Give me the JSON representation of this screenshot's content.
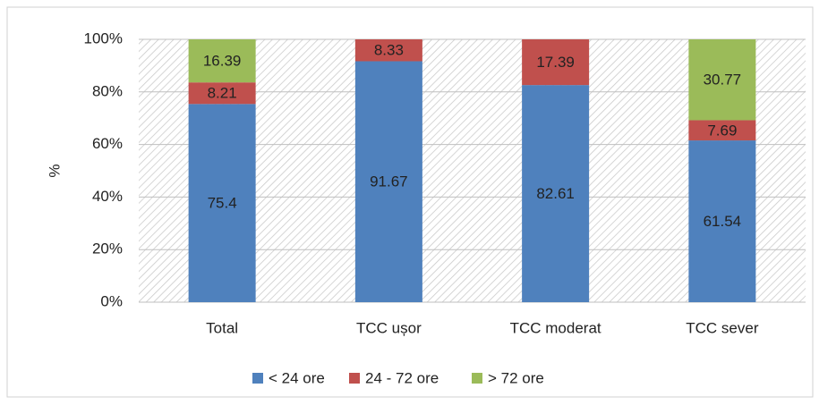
{
  "chart_data": {
    "type": "stacked_bar",
    "y_label": "%",
    "categories": [
      "Total",
      "TCC ușor",
      "TCC moderat",
      "TCC sever"
    ],
    "series": [
      {
        "name": "< 24 ore",
        "color": "#4f81bd",
        "values": [
          75.4,
          91.67,
          82.61,
          61.54
        ]
      },
      {
        "name": "24 - 72 ore",
        "color": "#c0504d",
        "values": [
          8.21,
          8.33,
          17.39,
          7.69
        ]
      },
      {
        "name": "> 72 ore",
        "color": "#9bbb59",
        "values": [
          16.39,
          null,
          null,
          30.77
        ]
      }
    ],
    "ylim": [
      0,
      100
    ],
    "yticks": [
      {
        "value": 0,
        "label": "0%"
      },
      {
        "value": 20,
        "label": "20%"
      },
      {
        "value": 40,
        "label": "40%"
      },
      {
        "value": 60,
        "label": "60%"
      },
      {
        "value": 80,
        "label": "80%"
      },
      {
        "value": 100,
        "label": "100%"
      }
    ],
    "grid": true,
    "legend": "bottom"
  }
}
